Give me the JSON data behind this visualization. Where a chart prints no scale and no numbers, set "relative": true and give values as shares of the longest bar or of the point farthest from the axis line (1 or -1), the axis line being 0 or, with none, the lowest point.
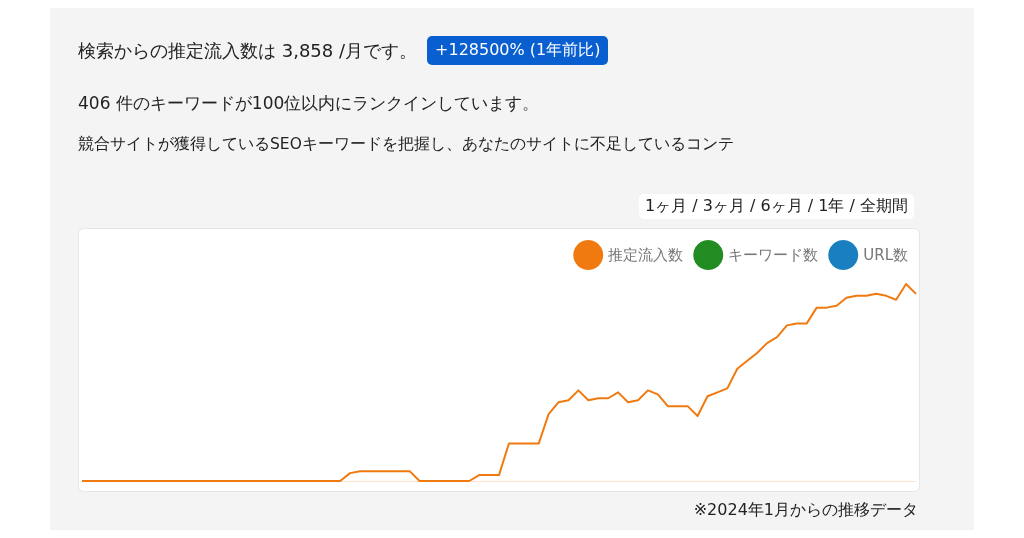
{
  "chart_data": {
    "type": "line",
    "title": "検索からの推定流入数は 3,858 /月です。",
    "subtitle": "406 件のキーワードが100位以内にランクインしています。",
    "annotations": [
      "+128500% (1年前比)",
      "競合サイトが獲得しているSEOキーワードを把握し、あなたのサイトに不足しているコンテ",
      "1ヶ月 / 3ヶ月 / 6ヶ月 / 1年 / 全期間",
      "※2024年1月からの推移データ"
    ],
    "relative": true,
    "legend": "top right",
    "marker": "none",
    "grid": false,
    "categories": [
      null,
      null,
      null,
      null,
      null,
      null,
      null,
      null,
      null,
      null,
      null,
      null,
      null,
      null,
      null,
      null,
      null,
      null,
      null,
      null,
      null,
      null,
      null,
      null,
      null,
      null,
      null,
      null,
      null,
      null,
      null,
      null,
      null,
      null,
      null,
      null,
      null,
      null,
      null,
      null,
      null,
      null,
      null,
      null,
      null,
      null,
      null,
      null,
      null,
      null,
      null,
      null,
      null,
      null,
      null,
      null,
      null,
      null,
      null,
      null,
      null,
      null,
      null,
      null,
      null,
      null,
      null,
      null,
      null,
      null,
      null,
      null,
      null,
      null,
      null,
      null,
      null,
      null,
      null,
      null,
      null,
      null,
      null,
      null,
      null
    ],
    "series": [
      {
        "name": "推定流入数",
        "color": "#f07a10",
        "values": [
          0,
          0,
          0,
          0,
          0,
          0,
          0,
          0,
          0,
          0,
          0,
          0,
          0,
          0,
          0,
          0,
          0,
          0,
          0,
          0,
          0,
          0,
          0,
          0,
          0,
          0,
          0,
          0.04,
          0.05,
          0.05,
          0.05,
          0.05,
          0.05,
          0.05,
          0,
          0,
          0,
          0,
          0,
          0,
          0.03,
          0.03,
          0.03,
          0.19,
          0.19,
          0.19,
          0.19,
          0.34,
          0.4,
          0.41,
          0.46,
          0.41,
          0.42,
          0.42,
          0.45,
          0.4,
          0.41,
          0.46,
          0.44,
          0.38,
          0.38,
          0.38,
          0.33,
          0.43,
          0.45,
          0.47,
          0.57,
          0.61,
          0.65,
          0.7,
          0.73,
          0.79,
          0.8,
          0.8,
          0.88,
          0.88,
          0.89,
          0.93,
          0.94,
          0.94,
          0.95,
          0.94,
          0.92,
          1,
          0.95
        ]
      },
      {
        "name": "キーワード数",
        "color": "#228b22",
        "values": [
          null,
          null,
          null,
          null,
          null,
          null,
          null,
          null,
          null,
          null,
          null,
          null,
          null,
          null,
          null,
          null,
          null,
          null,
          null,
          null,
          null,
          null,
          null,
          null,
          null,
          null,
          null,
          null,
          null,
          null,
          null,
          null,
          null,
          null,
          null,
          null,
          null,
          null,
          null,
          null,
          null,
          null,
          null,
          null,
          null,
          null,
          null,
          null,
          null,
          null,
          null,
          null,
          null,
          null,
          null,
          null,
          null,
          null,
          null,
          null,
          null,
          null,
          null,
          null,
          null,
          null,
          null,
          null,
          null,
          null,
          null,
          null,
          null,
          null,
          null,
          null,
          null,
          null,
          null,
          null,
          null,
          null,
          null,
          null,
          null
        ]
      },
      {
        "name": "URL数",
        "color": "#1a7fc0",
        "values": [
          null,
          null,
          null,
          null,
          null,
          null,
          null,
          null,
          null,
          null,
          null,
          null,
          null,
          null,
          null,
          null,
          null,
          null,
          null,
          null,
          null,
          null,
          null,
          null,
          null,
          null,
          null,
          null,
          null,
          null,
          null,
          null,
          null,
          null,
          null,
          null,
          null,
          null,
          null,
          null,
          null,
          null,
          null,
          null,
          null,
          null,
          null,
          null,
          null,
          null,
          null,
          null,
          null,
          null,
          null,
          null,
          null,
          null,
          null,
          null,
          null,
          null,
          null,
          null,
          null,
          null,
          null,
          null,
          null,
          null,
          null,
          null,
          null,
          null,
          null,
          null,
          null,
          null,
          null,
          null,
          null,
          null,
          null,
          null,
          null
        ]
      }
    ]
  }
}
